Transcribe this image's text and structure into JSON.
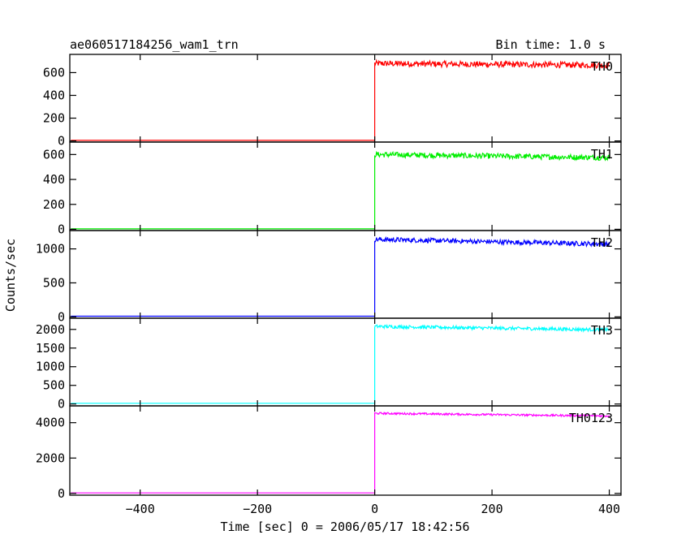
{
  "chart_data": {
    "type": "line",
    "title": "ae060517184256_wam1_trn",
    "bin_time_label": "Bin time: 1.0 s",
    "xlabel": "Time [sec] 0 = 2006/05/17 18:42:56",
    "ylabel": "Counts/sec",
    "xlim": [
      -520,
      420
    ],
    "xticks": [
      -400,
      -200,
      0,
      200,
      400
    ],
    "xtick_labels": [
      "−400",
      "−200",
      "0",
      "200",
      "400"
    ],
    "trigger_time": 0,
    "grid": false,
    "panels": [
      {
        "name": "TH0",
        "color": "#ff0000",
        "ylim": [
          -10,
          760
        ],
        "yticks": [
          0,
          200,
          400,
          600
        ],
        "yticklabels": [
          "0",
          "200",
          "400",
          "600"
        ],
        "pre_level": 5,
        "post_start": 680,
        "post_end": 665,
        "noise": 26
      },
      {
        "name": "TH1",
        "color": "#00ee00",
        "ylim": [
          -10,
          700
        ],
        "yticks": [
          0,
          200,
          400,
          600
        ],
        "yticklabels": [
          "0",
          "200",
          "400",
          "600"
        ],
        "pre_level": 4,
        "post_start": 600,
        "post_end": 575,
        "noise": 22
      },
      {
        "name": "TH2",
        "color": "#0000ff",
        "ylim": [
          -20,
          1270
        ],
        "yticks": [
          0,
          500,
          1000
        ],
        "yticklabels": [
          "0",
          "500",
          "1000"
        ],
        "pre_level": 10,
        "post_start": 1140,
        "post_end": 1070,
        "noise": 35
      },
      {
        "name": "TH3",
        "color": "#00ffff",
        "ylim": [
          -50,
          2300
        ],
        "yticks": [
          0,
          500,
          1000,
          1500,
          2000
        ],
        "yticklabels": [
          "0",
          "500",
          "1000",
          "1500",
          "2000"
        ],
        "pre_level": 20,
        "post_start": 2080,
        "post_end": 1990,
        "noise": 45
      },
      {
        "name": "TH0123",
        "color": "#ff00ff",
        "ylim": [
          -100,
          4950
        ],
        "yticks": [
          0,
          2000,
          4000
        ],
        "yticklabels": [
          "0",
          "2000",
          "4000"
        ],
        "pre_level": 30,
        "post_start": 4530,
        "post_end": 4380,
        "noise": 55
      }
    ]
  }
}
